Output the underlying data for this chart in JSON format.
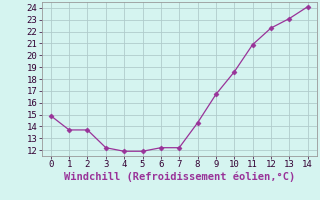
{
  "x": [
    0,
    1,
    2,
    3,
    4,
    5,
    6,
    7,
    8,
    9,
    10,
    11,
    12,
    13,
    14
  ],
  "y": [
    14.9,
    13.7,
    13.7,
    12.2,
    11.9,
    11.9,
    12.2,
    12.2,
    14.3,
    16.7,
    18.6,
    20.9,
    22.3,
    23.1,
    24.1
  ],
  "line_color": "#993399",
  "marker": "D",
  "marker_size": 2.5,
  "background_color": "#d5f4f0",
  "grid_color": "#b0cccc",
  "xlabel": "Windchill (Refroidissement éolien,°C)",
  "xlabel_color": "#993399",
  "xlim": [
    -0.5,
    14.5
  ],
  "ylim": [
    11.5,
    24.5
  ],
  "yticks": [
    12,
    13,
    14,
    15,
    16,
    17,
    18,
    19,
    20,
    21,
    22,
    23,
    24
  ],
  "xticks": [
    0,
    1,
    2,
    3,
    4,
    5,
    6,
    7,
    8,
    9,
    10,
    11,
    12,
    13,
    14
  ],
  "tick_fontsize": 6.5,
  "xlabel_fontsize": 7.5
}
